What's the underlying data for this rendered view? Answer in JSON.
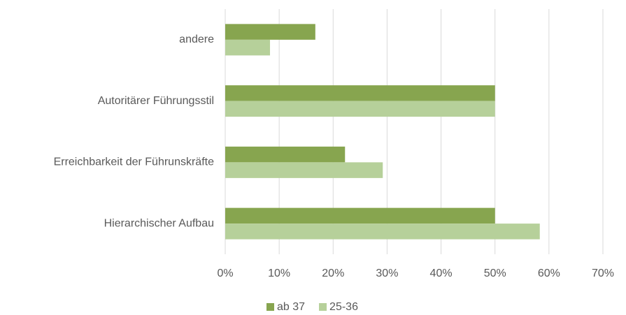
{
  "chart_data": {
    "type": "bar",
    "orientation": "horizontal",
    "categories": [
      "andere",
      "Autoritärer Führungsstil",
      "Erreichbarkeit der Führunskräfte",
      "Hierarchischer Aufbau"
    ],
    "series": [
      {
        "name": "ab 37",
        "color": "#87a54f",
        "values": [
          16.7,
          50,
          22.2,
          50
        ]
      },
      {
        "name": "25-36",
        "color": "#b6d09a",
        "values": [
          8.3,
          50,
          29.2,
          58.3
        ]
      }
    ],
    "xlim": [
      0,
      70
    ],
    "xticks": [
      {
        "value": 0,
        "label": "0%"
      },
      {
        "value": 10,
        "label": "10%"
      },
      {
        "value": 20,
        "label": "20%"
      },
      {
        "value": 30,
        "label": "30%"
      },
      {
        "value": 40,
        "label": "40%"
      },
      {
        "value": 50,
        "label": "50%"
      },
      {
        "value": 60,
        "label": "60%"
      },
      {
        "value": 70,
        "label": "70%"
      }
    ],
    "grid": true,
    "legend": "bottom"
  }
}
